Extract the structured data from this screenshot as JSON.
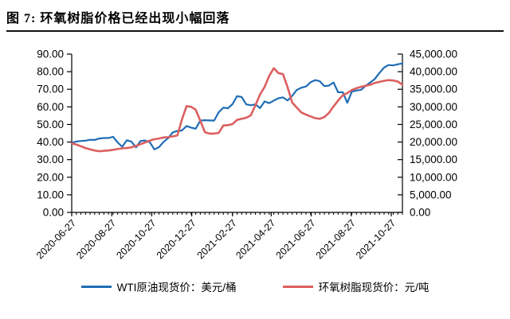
{
  "title": "图 7: 环氧树脂价格已经出现小幅回落",
  "chart_data": {
    "type": "line",
    "x": [
      "2020-06-27",
      "2020-07-04",
      "2020-07-11",
      "2020-07-18",
      "2020-07-25",
      "2020-08-01",
      "2020-08-08",
      "2020-08-15",
      "2020-08-22",
      "2020-08-29",
      "2020-09-05",
      "2020-09-12",
      "2020-09-19",
      "2020-09-26",
      "2020-10-03",
      "2020-10-10",
      "2020-10-17",
      "2020-10-24",
      "2020-10-31",
      "2020-11-07",
      "2020-11-14",
      "2020-11-21",
      "2020-11-28",
      "2020-12-05",
      "2020-12-12",
      "2020-12-19",
      "2020-12-26",
      "2021-01-02",
      "2021-01-09",
      "2021-01-16",
      "2021-01-23",
      "2021-01-30",
      "2021-02-06",
      "2021-02-13",
      "2021-02-20",
      "2021-02-27",
      "2021-03-06",
      "2021-03-13",
      "2021-03-20",
      "2021-03-27",
      "2021-04-03",
      "2021-04-10",
      "2021-04-17",
      "2021-04-24",
      "2021-05-01",
      "2021-05-08",
      "2021-05-15",
      "2021-05-22",
      "2021-05-29",
      "2021-06-05",
      "2021-06-12",
      "2021-06-19",
      "2021-06-26",
      "2021-07-03",
      "2021-07-10",
      "2021-07-17",
      "2021-07-24",
      "2021-07-31",
      "2021-08-07",
      "2021-08-14",
      "2021-08-21",
      "2021-08-28",
      "2021-09-04",
      "2021-09-11",
      "2021-09-18",
      "2021-09-25",
      "2021-10-02",
      "2021-10-09",
      "2021-10-16",
      "2021-10-23",
      "2021-10-30",
      "2021-11-06",
      "2021-11-13"
    ],
    "x_tick_labels": [
      "2020-06-27",
      "2020-08-27",
      "2020-10-27",
      "2020-12-27",
      "2021-02-27",
      "2021-04-27",
      "2021-06-27",
      "2021-08-27",
      "2021-10-27"
    ],
    "series": [
      {
        "name": "WTI原油现货价：美元/桶",
        "axis": "left",
        "color": "#1f6db6",
        "width": 2.2,
        "values": [
          39.6,
          40.3,
          40.6,
          40.8,
          41.3,
          41.2,
          42.0,
          42.3,
          42.3,
          43.0,
          39.8,
          37.3,
          41.0,
          40.2,
          37.0,
          40.6,
          40.9,
          39.9,
          35.8,
          37.1,
          40.1,
          42.2,
          45.5,
          46.3,
          46.6,
          49.1,
          48.2,
          47.6,
          52.2,
          52.4,
          52.3,
          52.2,
          56.9,
          59.5,
          59.2,
          61.5,
          66.1,
          65.6,
          61.4,
          60.9,
          61.4,
          59.3,
          63.1,
          62.1,
          63.6,
          64.9,
          65.4,
          63.6,
          66.3,
          69.6,
          70.9,
          71.6,
          74.0,
          75.2,
          74.6,
          71.8,
          72.1,
          73.9,
          68.3,
          68.4,
          62.3,
          68.7,
          69.3,
          69.7,
          72.0,
          73.9,
          75.9,
          79.3,
          82.3,
          83.8,
          83.6,
          84.2,
          84.7
        ]
      },
      {
        "name": "环氧树脂现货价：元/吨",
        "axis": "right",
        "color": "#dc5f5f",
        "width": 2.6,
        "values": [
          19600,
          19300,
          18800,
          18300,
          17900,
          17600,
          17400,
          17500,
          17600,
          17800,
          18000,
          18200,
          18300,
          18500,
          18900,
          19400,
          19900,
          20400,
          20800,
          21000,
          21300,
          21400,
          21600,
          21900,
          26400,
          30200,
          30000,
          29200,
          26000,
          22800,
          22400,
          22400,
          22600,
          24700,
          24800,
          25100,
          26300,
          26600,
          26900,
          27600,
          30500,
          33500,
          35700,
          38800,
          41000,
          39600,
          39300,
          35600,
          31200,
          29800,
          28400,
          27800,
          27300,
          26800,
          26600,
          27100,
          28300,
          30100,
          31800,
          33300,
          33900,
          34800,
          35300,
          35700,
          36000,
          36300,
          36800,
          37100,
          37400,
          37600,
          37500,
          37200,
          36300
        ]
      }
    ],
    "left_axis": {
      "min": 0,
      "max": 90,
      "step": 10,
      "tick_labels": [
        "0.00",
        "10.00",
        "20.00",
        "30.00",
        "40.00",
        "50.00",
        "60.00",
        "70.00",
        "80.00",
        "90.00"
      ]
    },
    "right_axis": {
      "min": 0,
      "max": 45000,
      "step": 5000,
      "tick_labels": [
        "0.00",
        "5,000.00",
        "10,000.00",
        "15,000.00",
        "20,000.00",
        "25,000.00",
        "30,000.00",
        "35,000.00",
        "40,000.00",
        "45,000.00"
      ]
    },
    "grid": false,
    "legend_position": "bottom-center"
  }
}
